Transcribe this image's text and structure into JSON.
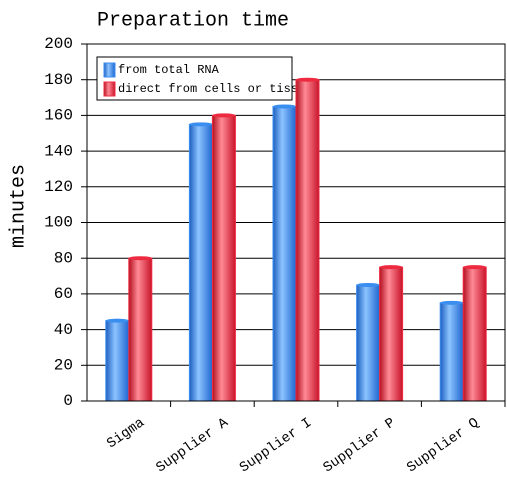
{
  "chart_data": {
    "type": "bar",
    "title": "Preparation time",
    "y_label": "minutes",
    "categories": [
      "Sigma",
      "Supplier A",
      "Supplier I",
      "Supplier P",
      "Supplier Q"
    ],
    "series": [
      {
        "name": "from total RNA",
        "color": "#3a8ef0",
        "values": [
          45,
          155,
          165,
          65,
          55
        ]
      },
      {
        "name": "direct from cells or tissues",
        "color": "#ee2a40",
        "values": [
          80,
          160,
          180,
          75,
          75
        ]
      }
    ],
    "ylim": [
      0,
      200
    ],
    "yticks": [
      0,
      20,
      40,
      60,
      80,
      100,
      120,
      140,
      160,
      180,
      200
    ],
    "grid": true,
    "legend": "upper left"
  }
}
